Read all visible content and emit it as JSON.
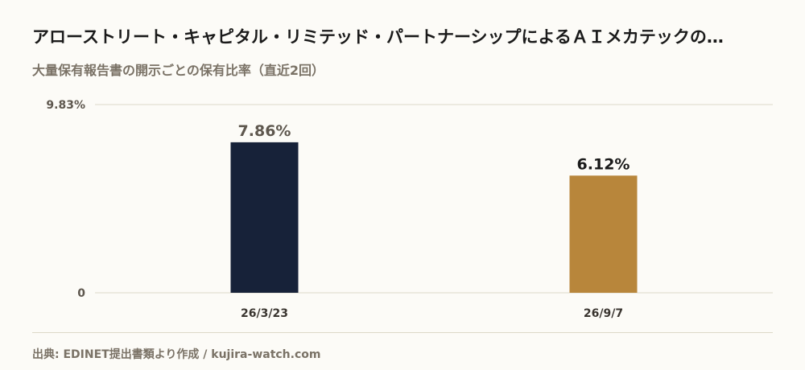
{
  "title": "アローストリート・キャピタル・リミテッド・パートナーシップによるＡＩメカテックの…",
  "subtitle": "大量保有報告書の開示ごとの保有比率（直近2回）",
  "source": "出典: EDINET提出書類より作成 / kujira-watch.com",
  "colors": {
    "background": "#fcfbf7",
    "bar_primary": "#172239",
    "bar_secondary": "#b8863b",
    "grid": "#ddd8c8"
  },
  "chart_data": {
    "type": "bar",
    "categories": [
      "26/3/23",
      "26/9/7"
    ],
    "values": [
      7.86,
      6.12
    ],
    "value_labels": [
      "7.86%",
      "6.12%"
    ],
    "bar_colors": [
      "#172239",
      "#b8863b"
    ],
    "value_label_colors": [
      "#5e574e",
      "#1a1a1a"
    ],
    "yticks": [
      {
        "value": 9.83,
        "label": "9.83%"
      },
      {
        "value": 0,
        "label": "0"
      }
    ],
    "ylim": [
      0,
      9.83
    ],
    "grid": true,
    "legend": "none",
    "title": "アローストリート・キャピタル・リミテッド・パートナーシップによるＡＩメカテックの…",
    "subtitle": "大量保有報告書の開示ごとの保有比率（直近2回）"
  }
}
